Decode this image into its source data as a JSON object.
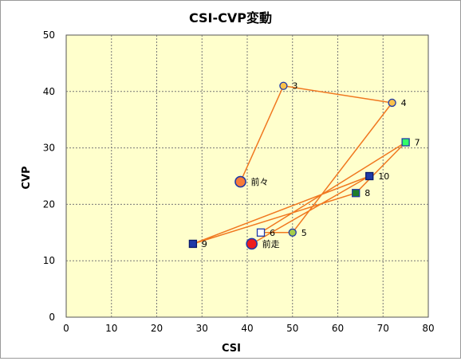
{
  "chart_data": {
    "type": "scatter",
    "title": "CSI-CVP変動",
    "xlabel": "CSI",
    "ylabel": "CVP",
    "xlim": [
      0,
      80
    ],
    "ylim": [
      0,
      50
    ],
    "xticks": [
      "0",
      "10",
      "20",
      "30",
      "40",
      "50",
      "60",
      "70",
      "80"
    ],
    "yticks": [
      "0",
      "10",
      "20",
      "30",
      "40",
      "50"
    ],
    "grid": true,
    "plot_background": "#ffffcc",
    "line_color": "#f07820",
    "points": [
      {
        "label": "前々",
        "x": 38.5,
        "y": 24,
        "marker": "circle-large",
        "fill": "#f77b3a",
        "stroke": "#1f3aa8"
      },
      {
        "label": "3",
        "x": 48,
        "y": 41,
        "marker": "circle",
        "fill": "#f9c14a",
        "stroke": "#1f3aa8"
      },
      {
        "label": "4",
        "x": 72,
        "y": 38,
        "marker": "circle",
        "fill": "#f9c14a",
        "stroke": "#1f3aa8"
      },
      {
        "label": "5",
        "x": 50,
        "y": 15,
        "marker": "circle",
        "fill": "#a4cc4a",
        "stroke": "#1f3aa8"
      },
      {
        "label": "6",
        "x": 43,
        "y": 15,
        "marker": "square",
        "fill": "#ffffff",
        "stroke": "#1f3aa8"
      },
      {
        "label": "7",
        "x": 75,
        "y": 31,
        "marker": "square",
        "fill": "#33ff66",
        "stroke": "#1f3aa8"
      },
      {
        "label": "8",
        "x": 64,
        "y": 22,
        "marker": "square",
        "fill": "#1e7d2a",
        "stroke": "#1f3aa8"
      },
      {
        "label": "9",
        "x": 28,
        "y": 13,
        "marker": "square",
        "fill": "#1f3aa8",
        "stroke": "#0a1a6a"
      },
      {
        "label": "10",
        "x": 67,
        "y": 25,
        "marker": "square",
        "fill": "#1f3aa8",
        "stroke": "#0a1a6a"
      },
      {
        "label": "前走",
        "x": 41,
        "y": 13,
        "marker": "circle-large",
        "fill": "#ee1c1c",
        "stroke": "#1f3aa8"
      }
    ],
    "path_order": [
      "前々",
      "3",
      "4",
      "5",
      "6",
      "7",
      "8",
      "9",
      "10",
      "前走"
    ]
  }
}
